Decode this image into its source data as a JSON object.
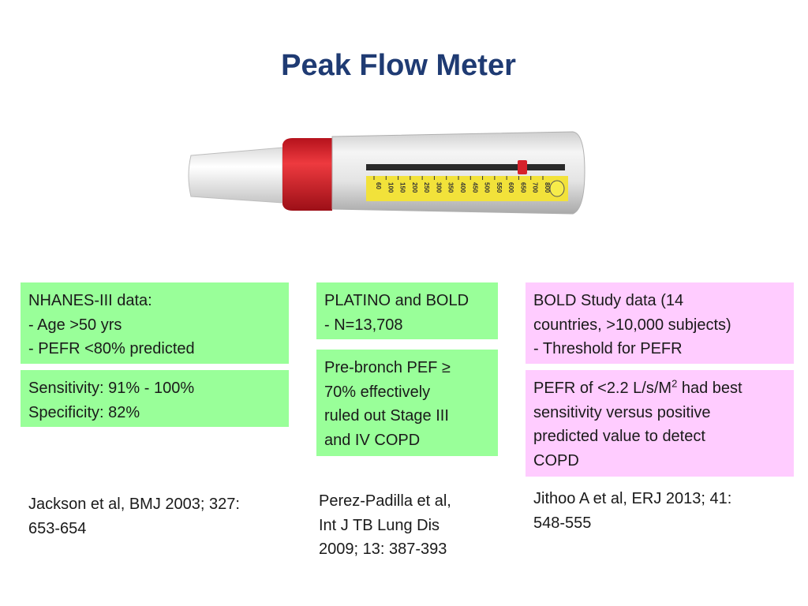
{
  "slide": {
    "title": "Peak Flow Meter"
  },
  "meter": {
    "scale_ticks": [
      "60",
      "100",
      "150",
      "200",
      "250",
      "300",
      "350",
      "400",
      "450",
      "500",
      "550",
      "600",
      "650",
      "700",
      "800"
    ],
    "indicator_level": 700,
    "colors": {
      "body": "#e8e8e8",
      "collar": "#d81e2a",
      "scale": "#f2e23a",
      "mouthpiece": "#f4f4f4"
    }
  },
  "columns": [
    {
      "top_box": {
        "lines": [
          "NHANES-III data:",
          "- Age >50 yrs",
          "- PEFR <80% predicted"
        ],
        "color": "#99ff99"
      },
      "bottom_box": {
        "lines": [
          "Sensitivity: 91% - 100%",
          "Specificity: 82%"
        ],
        "color": "#99ff99"
      },
      "reference": {
        "lines": [
          "Jackson et al, BMJ 2003; 327:",
          "653-654"
        ]
      }
    },
    {
      "top_box": {
        "lines": [
          "PLATINO and BOLD",
          "- N=13,708"
        ],
        "color": "#99ff99"
      },
      "bottom_box": {
        "lines": [
          "Pre-bronch PEF ≥",
          "70% effectively",
          "ruled out Stage III",
          "and IV COPD"
        ],
        "color": "#99ff99"
      },
      "reference": {
        "lines": [
          "Perez-Padilla et al,",
          "Int J TB Lung Dis",
          "2009; 13: 387-393"
        ]
      }
    },
    {
      "top_box": {
        "lines": [
          "BOLD Study data (14",
          "countries, >10,000 subjects)",
          "- Threshold for PEFR"
        ],
        "color": "#ffccff"
      },
      "bottom_box": {
        "lines": [
          "PEFR of <2.2 L/s/M",
          "2",
          " had best",
          "sensitivity versus positive",
          "predicted value to detect",
          "COPD"
        ],
        "color": "#ffccff"
      },
      "reference": {
        "lines": [
          "Jithoo A et al, ERJ 2013; 41:",
          "548-555"
        ]
      }
    }
  ]
}
